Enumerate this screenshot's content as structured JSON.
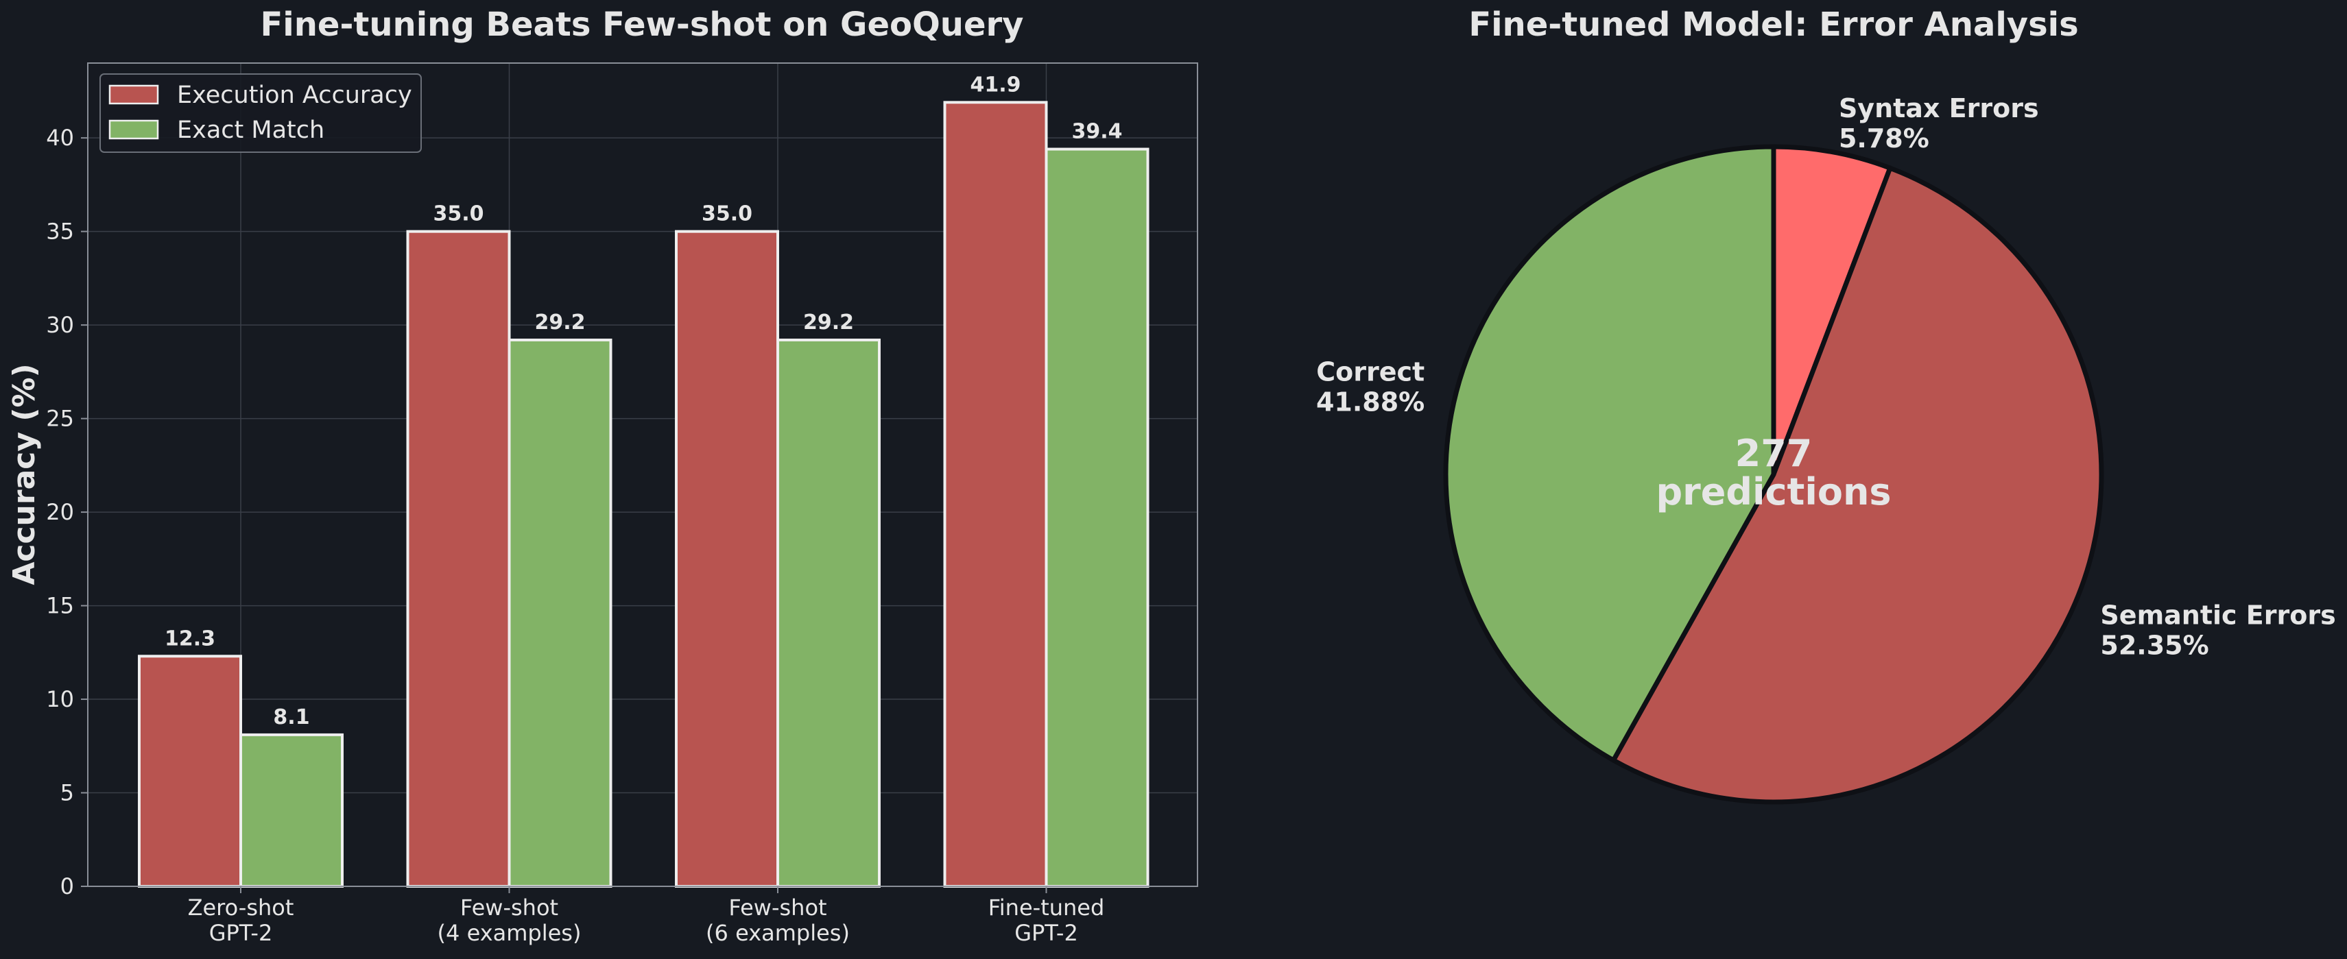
{
  "figure": {
    "background": "#161a21",
    "text_color": "#e6e6e6",
    "grid_color": "#3a3f48",
    "spine_color": "#8a8f98"
  },
  "chart_data": [
    {
      "type": "bar",
      "title": "Fine-tuning Beats Few-shot on GeoQuery",
      "xlabel": "",
      "ylabel": "Accuracy (%)",
      "ylim": [
        0,
        44
      ],
      "yticks": [
        0,
        5,
        10,
        15,
        20,
        25,
        30,
        35,
        40
      ],
      "grid": true,
      "legend": "top-left",
      "categories": [
        [
          "Zero-shot",
          "GPT-2"
        ],
        [
          "Few-shot",
          "(4 examples)"
        ],
        [
          "Few-shot",
          "(6 examples)"
        ],
        [
          "Fine-tuned",
          "GPT-2"
        ]
      ],
      "series": [
        {
          "name": "Execution Accuracy",
          "values": [
            12.3,
            35.0,
            35.0,
            41.9
          ],
          "labels": [
            "12.3",
            "35.0",
            "35.0",
            "41.9"
          ],
          "color": "#b85450"
        },
        {
          "name": "Exact Match",
          "values": [
            8.1,
            29.2,
            29.2,
            39.4
          ],
          "labels": [
            "8.1",
            "29.2",
            "29.2",
            "39.4"
          ],
          "color": "#82b366"
        }
      ]
    },
    {
      "type": "pie",
      "title": "Fine-tuned Model: Error Analysis",
      "center_text": [
        "277",
        "predictions"
      ],
      "slices": [
        {
          "label": "Syntax Errors",
          "value": 5.78,
          "pct": "5.78%",
          "color": "#ff6b6b"
        },
        {
          "label": "Semantic Errors",
          "value": 52.35,
          "pct": "52.35%",
          "color": "#b85450"
        },
        {
          "label": "Correct",
          "value": 41.88,
          "pct": "41.88%",
          "color": "#82b366"
        }
      ]
    }
  ]
}
